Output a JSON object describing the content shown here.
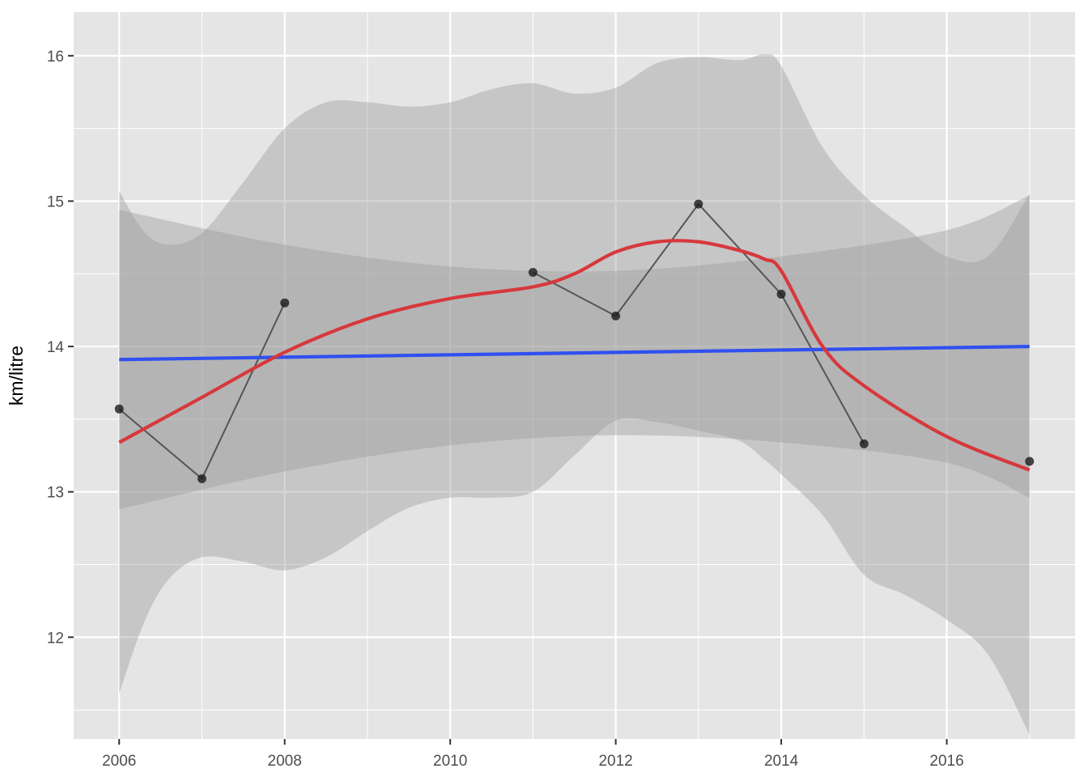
{
  "chart_data": {
    "type": "line",
    "title": "",
    "xlabel": "",
    "ylabel": "km/litre",
    "xlim": [
      2005.45,
      2017.55
    ],
    "ylim": [
      11.3,
      16.3
    ],
    "x_ticks": [
      2006,
      2008,
      2010,
      2012,
      2014,
      2016
    ],
    "y_ticks": [
      12,
      13,
      14,
      15,
      16
    ],
    "grid": true,
    "legend": "none",
    "colors": {
      "panel": "#e5e5e5",
      "grid": "#ffffff",
      "observed": "#555555",
      "linear_fit": "#3050f0",
      "smooth_fit": "#d7383c",
      "band": "#999999"
    },
    "observed": {
      "segments": [
        {
          "x": [
            2006,
            2007,
            2008
          ],
          "y": [
            13.57,
            13.09,
            14.3
          ]
        },
        {
          "x": [
            2011,
            2012,
            2013,
            2014,
            2015
          ],
          "y": [
            14.51,
            14.21,
            14.98,
            14.36,
            13.33
          ]
        }
      ],
      "points": {
        "x": [
          2006,
          2007,
          2008,
          2011,
          2012,
          2013,
          2014,
          2015,
          2017
        ],
        "y": [
          13.57,
          13.09,
          14.3,
          14.51,
          14.21,
          14.98,
          14.36,
          13.33,
          13.21
        ]
      }
    },
    "linear_fit": {
      "x": [
        2006,
        2017
      ],
      "y": [
        13.91,
        14.0
      ],
      "band_upper": [
        14.94,
        14.7,
        14.55,
        14.52,
        14.62,
        14.8,
        15.04
      ],
      "band_lower": [
        12.88,
        13.14,
        13.32,
        13.39,
        13.34,
        13.2,
        12.96
      ],
      "band_x": [
        2006,
        2008,
        2010,
        2012,
        2014,
        2016,
        2017
      ]
    },
    "smooth_fit": {
      "x": [
        2006,
        2007,
        2008,
        2009,
        2010,
        2011,
        2011.5,
        2012,
        2012.5,
        2013,
        2013.5,
        2013.8,
        2014,
        2014.5,
        2015,
        2016,
        2017
      ],
      "y": [
        13.34,
        13.65,
        13.96,
        14.19,
        14.33,
        14.41,
        14.5,
        14.65,
        14.72,
        14.72,
        14.66,
        14.6,
        14.52,
        14.0,
        13.73,
        13.38,
        13.15
      ],
      "band_x": [
        2006,
        2006.3,
        2006.6,
        2007,
        2007.5,
        2008,
        2008.5,
        2009,
        2009.5,
        2010,
        2010.5,
        2011,
        2011.5,
        2012,
        2012.5,
        2013,
        2013.5,
        2013.8,
        2014,
        2014.5,
        2015,
        2015.5,
        2016,
        2016.5,
        2017
      ],
      "band_upper": [
        15.07,
        14.79,
        14.7,
        14.78,
        15.13,
        15.5,
        15.68,
        15.68,
        15.65,
        15.68,
        15.77,
        15.81,
        15.74,
        15.78,
        15.95,
        15.99,
        15.97,
        16.01,
        15.93,
        15.37,
        15.04,
        14.82,
        14.62,
        14.62,
        15.05
      ],
      "band_lower": [
        11.61,
        12.1,
        12.4,
        12.55,
        12.52,
        12.46,
        12.55,
        12.73,
        12.89,
        12.96,
        12.96,
        13.0,
        13.25,
        13.49,
        13.48,
        13.42,
        13.35,
        13.22,
        13.12,
        12.84,
        12.43,
        12.29,
        12.12,
        11.88,
        11.33
      ]
    }
  }
}
